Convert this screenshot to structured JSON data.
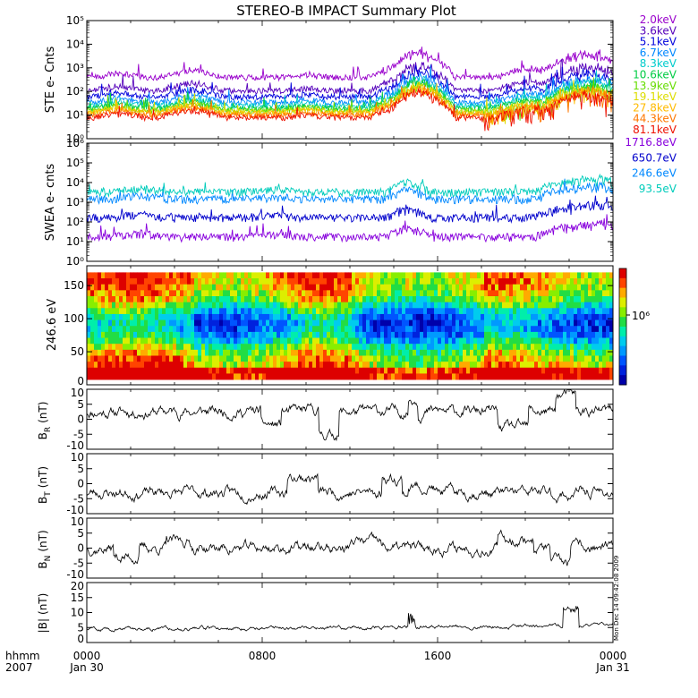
{
  "title": "STEREO-B IMPACT Summary Plot",
  "time_axis": {
    "corner_top": "hhmm",
    "corner_bottom": "2007",
    "ticks": [
      {
        "top": "0000",
        "bottom": "Jan 30"
      },
      {
        "top": "0800",
        "bottom": ""
      },
      {
        "top": "1600",
        "bottom": ""
      },
      {
        "top": "0000",
        "bottom": "Jan 31"
      }
    ]
  },
  "side_stamp": "Mon Dec 14 09:42:08 2009",
  "chart_data": [
    {
      "type": "line",
      "ylabel": "STE e- Cnts",
      "yscale": "log",
      "ylim": [
        1,
        100000
      ],
      "y_ticks": [
        "10⁰",
        "10¹",
        "10²",
        "10³",
        "10⁴",
        "10⁵"
      ],
      "x_range_hours": [
        0,
        24
      ],
      "series": [
        {
          "name": "2.0keV",
          "color": "#9900cc",
          "level": 400
        },
        {
          "name": "3.6keV",
          "color": "#5500bb",
          "level": 110
        },
        {
          "name": "5.1keV",
          "color": "#0000dd",
          "level": 60
        },
        {
          "name": "6.7keV",
          "color": "#0088ff",
          "level": 35
        },
        {
          "name": "8.3keV",
          "color": "#00cccc",
          "level": 25
        },
        {
          "name": "10.6keV",
          "color": "#00cc44",
          "level": 19
        },
        {
          "name": "13.9keV",
          "color": "#66dd00",
          "level": 16
        },
        {
          "name": "19.1keV",
          "color": "#dddd00",
          "level": 14
        },
        {
          "name": "27.8keV",
          "color": "#ffbb00",
          "level": 12
        },
        {
          "name": "44.3keV",
          "color": "#ff7700",
          "level": 10
        },
        {
          "name": "81.1keV",
          "color": "#ee1100",
          "level": 8
        }
      ]
    },
    {
      "type": "line",
      "ylabel": "SWEA e- cnts",
      "yscale": "log",
      "ylim": [
        1,
        1000000
      ],
      "y_ticks": [
        "10⁰",
        "10¹",
        "10²",
        "10³",
        "10⁴",
        "10⁵",
        "10⁶"
      ],
      "x_range_hours": [
        0,
        24
      ],
      "series": [
        {
          "name": "1716.8eV",
          "color": "#8800dd",
          "level": 18
        },
        {
          "name": "650.7eV",
          "color": "#0000cc",
          "level": 170
        },
        {
          "name": "246.6eV",
          "color": "#0088ff",
          "level": 1500
        },
        {
          "name": "93.5eV",
          "color": "#00ccbb",
          "level": 3500
        }
      ]
    },
    {
      "type": "heatmap",
      "ylabel": "246.6 eV",
      "ylim": [
        0,
        180
      ],
      "y_ticks": [
        "0",
        "50",
        "100",
        "150"
      ],
      "colorbar_label": "10⁶",
      "x_range_hours": [
        0,
        24
      ]
    },
    {
      "type": "line",
      "ylabel": "B",
      "ylabel_sub": "R",
      "ylabel_unit": "(nT)",
      "ylim": [
        -10,
        10
      ],
      "y_ticks": [
        "10",
        "5",
        "0",
        "-5",
        "-10"
      ],
      "y_tick_values": [
        10,
        5,
        0,
        -5,
        -10
      ],
      "x_range_hours": [
        0,
        24
      ]
    },
    {
      "type": "line",
      "ylabel": "B",
      "ylabel_sub": "T",
      "ylabel_unit": "(nT)",
      "ylim": [
        -10,
        10
      ],
      "y_ticks": [
        "10",
        "5",
        "0",
        "-5",
        "-10"
      ],
      "y_tick_values": [
        10,
        5,
        0,
        -5,
        -10
      ],
      "x_range_hours": [
        0,
        24
      ]
    },
    {
      "type": "line",
      "ylabel": "B",
      "ylabel_sub": "N",
      "ylabel_unit": "(nT)",
      "ylim": [
        -10,
        10
      ],
      "y_ticks": [
        "10",
        "5",
        "0",
        "-5",
        "-10"
      ],
      "y_tick_values": [
        10,
        5,
        0,
        -5,
        -10
      ],
      "x_range_hours": [
        0,
        24
      ]
    },
    {
      "type": "line",
      "ylabel": "|B|",
      "ylabel_sub": "",
      "ylabel_unit": "(nT)",
      "ylim": [
        0,
        20
      ],
      "y_ticks": [
        "20",
        "15",
        "10",
        "5",
        "0"
      ],
      "y_tick_values": [
        20,
        15,
        10,
        5,
        0
      ],
      "x_range_hours": [
        0,
        24
      ]
    }
  ]
}
